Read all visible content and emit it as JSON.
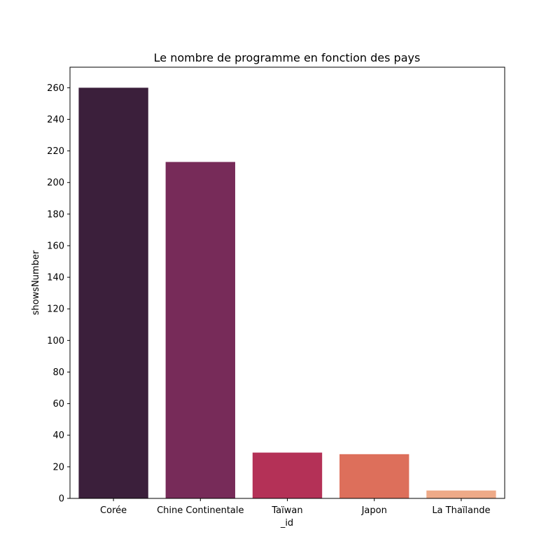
{
  "chart_data": {
    "type": "bar",
    "title": "Le nombre de programme en fonction des pays",
    "xlabel": "_id",
    "ylabel": "showsNumber",
    "categories": [
      "Corée",
      "Chine Continentale",
      "Taïwan",
      "Japon",
      "La Thaïlande"
    ],
    "values": [
      260,
      213,
      29,
      28,
      5
    ],
    "colors": [
      "#3b1f3b",
      "#772b59",
      "#b43157",
      "#dd6f5b",
      "#eeaa88"
    ],
    "ylim": [
      0,
      273
    ],
    "yticks": [
      0,
      20,
      40,
      60,
      80,
      100,
      120,
      140,
      160,
      180,
      200,
      220,
      240,
      260
    ],
    "grid": false,
    "legend": "none"
  }
}
